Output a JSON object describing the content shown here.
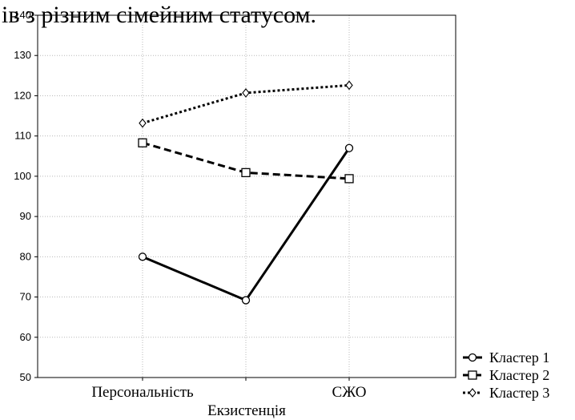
{
  "header_text": "ів з різним сімейним статусом.",
  "chart_data": {
    "type": "line",
    "categories": [
      "Персональність",
      "Екзистенція",
      "СЖО"
    ],
    "xlabel": "Екзистенція",
    "ylabel": "",
    "ylim": [
      50,
      140
    ],
    "yticks": [
      50,
      60,
      70,
      80,
      90,
      100,
      110,
      120,
      130,
      140
    ],
    "x_tick_labels": [
      "Персональність",
      "",
      "СЖО"
    ],
    "grid": true,
    "legend_position": "bottom-right outside",
    "series": [
      {
        "name": "Кластер  1",
        "values": [
          80,
          69.2,
          107
        ],
        "line_style": "solid",
        "marker": "circle",
        "color": "#000000"
      },
      {
        "name": "Кластер  2",
        "values": [
          108.3,
          100.9,
          99.4
        ],
        "line_style": "dashed",
        "marker": "square",
        "color": "#000000"
      },
      {
        "name": "Кластер  3",
        "values": [
          113.2,
          120.7,
          122.6
        ],
        "line_style": "dotted",
        "marker": "diamond",
        "color": "#000000"
      }
    ]
  }
}
